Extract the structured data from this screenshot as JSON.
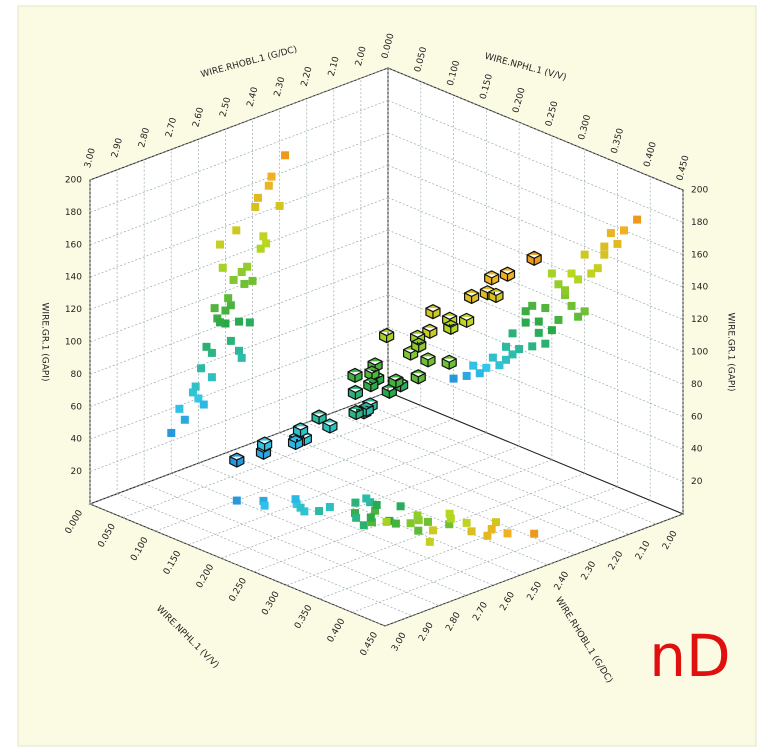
{
  "chart_data": {
    "type": "scatter3d",
    "xlabel": "WIRE.RHOBL.1 (G/DC)",
    "ylabel": "WIRE.NPHL.1 (V/V)",
    "zlabel": "WIRE.GR.1 (GAPI)",
    "annotation": "nD",
    "xlim": [
      1.9,
      3.0
    ],
    "xticks": [
      {
        "value": 2.0,
        "label": "2.00"
      },
      {
        "value": 2.1,
        "label": "2.10"
      },
      {
        "value": 2.2,
        "label": "2.20"
      },
      {
        "value": 2.3,
        "label": "2.30"
      },
      {
        "value": 2.4,
        "label": "2.40"
      },
      {
        "value": 2.5,
        "label": "2.50"
      },
      {
        "value": 2.6,
        "label": "2.60"
      },
      {
        "value": 2.7,
        "label": "2.70"
      },
      {
        "value": 2.8,
        "label": "2.80"
      },
      {
        "value": 2.9,
        "label": "2.90"
      },
      {
        "value": 3.0,
        "label": "3.00"
      }
    ],
    "ylim": [
      0,
      0.45
    ],
    "yticks": [
      {
        "value": 0,
        "label": "0.000"
      },
      {
        "value": 0.05,
        "label": "0.050"
      },
      {
        "value": 0.1,
        "label": "0.100"
      },
      {
        "value": 0.15,
        "label": "0.150"
      },
      {
        "value": 0.2,
        "label": "0.200"
      },
      {
        "value": 0.25,
        "label": "0.250"
      },
      {
        "value": 0.3,
        "label": "0.300"
      },
      {
        "value": 0.35,
        "label": "0.350"
      },
      {
        "value": 0.4,
        "label": "0.400"
      },
      {
        "value": 0.45,
        "label": "0.450"
      }
    ],
    "zlim": [
      0,
      200
    ],
    "zticks": [
      20,
      40,
      60,
      80,
      100,
      120,
      140,
      160,
      180,
      200
    ],
    "grid": true,
    "colormap": [
      "#1848c8",
      "#30c8e8",
      "#28a848",
      "#b8d820",
      "#f0b020",
      "#e05818"
    ],
    "x": [
      2.45,
      2.5,
      2.4,
      2.55,
      2.35,
      2.6,
      2.48,
      2.52,
      2.42,
      2.38,
      2.65,
      2.3,
      2.57,
      2.44,
      2.49,
      2.53,
      2.36,
      2.62,
      2.47,
      2.41,
      2.58,
      2.33,
      2.51,
      2.46,
      2.7,
      2.28,
      2.55,
      2.43,
      2.39,
      2.61,
      2.5,
      2.45,
      2.67,
      2.34,
      2.54,
      2.48,
      2.37,
      2.59,
      2.44,
      2.52
    ],
    "y": [
      0.2,
      0.25,
      0.3,
      0.18,
      0.28,
      0.15,
      0.22,
      0.32,
      0.26,
      0.35,
      0.12,
      0.33,
      0.24,
      0.19,
      0.29,
      0.21,
      0.31,
      0.17,
      0.27,
      0.23,
      0.14,
      0.36,
      0.25,
      0.3,
      0.1,
      0.38,
      0.22,
      0.28,
      0.33,
      0.16,
      0.26,
      0.21,
      0.13,
      0.34,
      0.24,
      0.19,
      0.29,
      0.18,
      0.27,
      0.23
    ],
    "z": [
      60,
      80,
      100,
      50,
      120,
      40,
      90,
      130,
      110,
      150,
      30,
      140,
      70,
      55,
      95,
      85,
      125,
      45,
      105,
      75,
      35,
      160,
      115,
      135,
      25,
      170,
      65,
      100,
      145,
      48,
      88,
      78,
      38,
      155,
      92,
      68,
      118,
      58,
      108,
      82
    ]
  }
}
